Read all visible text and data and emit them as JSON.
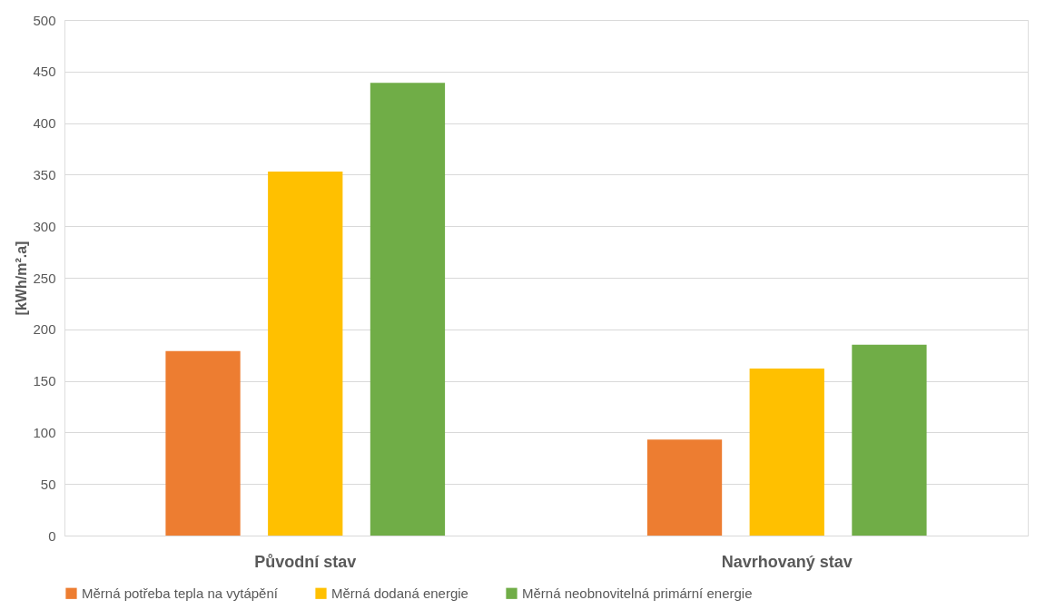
{
  "chart_data": {
    "type": "bar",
    "ylabel": "[kWh/m².a]",
    "categories": [
      "Původní stav",
      "Navrhovaný stav"
    ],
    "series": [
      {
        "name": "Měrná potřeba tepla na vytápění",
        "color": "#ed7d31",
        "values": [
          179,
          93
        ]
      },
      {
        "name": "Měrná dodaná energie",
        "color": "#ffc000",
        "values": [
          353,
          162
        ]
      },
      {
        "name": "Měrná neobnovitelná primární energie",
        "color": "#70ad47",
        "values": [
          439,
          185
        ]
      }
    ],
    "ylim": [
      0,
      500
    ],
    "yticks": [
      0,
      50,
      100,
      150,
      200,
      250,
      300,
      350,
      400,
      450,
      500
    ],
    "grid": "y",
    "legend": "bottom"
  }
}
